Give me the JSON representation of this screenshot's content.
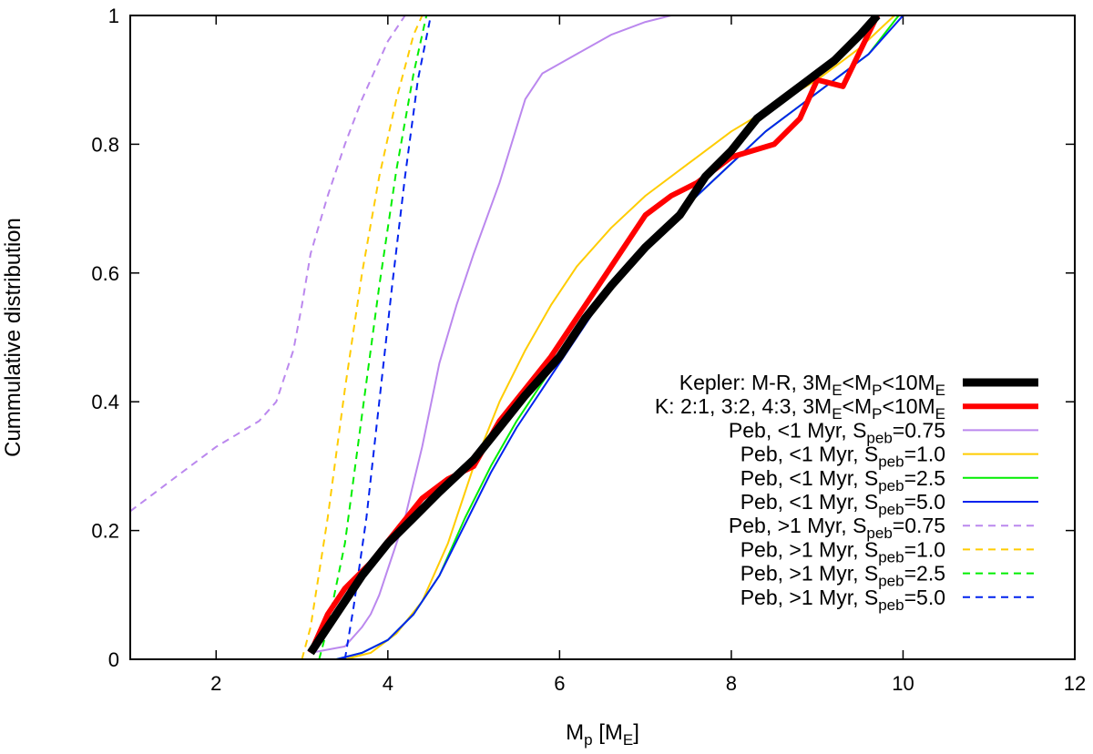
{
  "chart_data": {
    "type": "line",
    "title": "",
    "xlabel": {
      "main": "M",
      "sub": "p",
      "rest": " [M",
      "sub2": "E",
      "end": "]"
    },
    "ylabel": "Cummulative distribution",
    "xlim": [
      1,
      12
    ],
    "ylim": [
      0,
      1
    ],
    "xticks": [
      2,
      4,
      6,
      8,
      10,
      12
    ],
    "yticks": [
      0,
      0.2,
      0.4,
      0.6,
      0.8,
      1
    ],
    "xtick_labels": [
      "2",
      "4",
      "6",
      "8",
      "10",
      "12"
    ],
    "ytick_labels": [
      "0",
      "0.2",
      "0.4",
      "0.6",
      "0.8",
      "1"
    ],
    "legend_position": "bottom-right",
    "series": [
      {
        "name": "Kepler: M-R, 3ME<MP<10ME",
        "label_parts": [
          [
            "Kepler: M-R, 3M",
            ""
          ],
          [
            "E",
            "sub"
          ],
          [
            "<M",
            ""
          ],
          [
            "P",
            "sub"
          ],
          [
            "<10M",
            ""
          ],
          [
            "E",
            "sub"
          ]
        ],
        "color": "#000000",
        "width": 9,
        "dash": "",
        "x": [
          3.1,
          3.3,
          3.5,
          3.7,
          4.0,
          4.3,
          4.6,
          5.0,
          5.3,
          5.6,
          6.0,
          6.3,
          6.6,
          7.0,
          7.4,
          7.7,
          8.0,
          8.3,
          8.6,
          8.9,
          9.2,
          9.5,
          9.7
        ],
        "y": [
          0.01,
          0.05,
          0.09,
          0.13,
          0.18,
          0.22,
          0.26,
          0.31,
          0.36,
          0.41,
          0.47,
          0.53,
          0.58,
          0.64,
          0.69,
          0.75,
          0.79,
          0.84,
          0.87,
          0.9,
          0.93,
          0.97,
          1.0
        ]
      },
      {
        "name": "K: 2:1, 3:2, 4:3, 3ME<MP<10ME",
        "label_parts": [
          [
            "K: 2:1, 3:2, 4:3,  3M",
            ""
          ],
          [
            "E",
            "sub"
          ],
          [
            "<M",
            ""
          ],
          [
            "P",
            "sub"
          ],
          [
            "<10M",
            ""
          ],
          [
            "E",
            "sub"
          ]
        ],
        "color": "#ff0000",
        "width": 6,
        "dash": "",
        "x": [
          3.1,
          3.3,
          3.5,
          3.8,
          4.1,
          4.4,
          4.7,
          5.0,
          5.3,
          5.6,
          5.9,
          6.2,
          6.5,
          6.8,
          7.0,
          7.3,
          7.6,
          8.0,
          8.5,
          8.8,
          9.0,
          9.3,
          9.7
        ],
        "y": [
          0.01,
          0.07,
          0.11,
          0.15,
          0.2,
          0.25,
          0.28,
          0.3,
          0.37,
          0.42,
          0.47,
          0.53,
          0.59,
          0.65,
          0.69,
          0.72,
          0.74,
          0.78,
          0.8,
          0.84,
          0.9,
          0.89,
          1.0
        ]
      },
      {
        "name": "Peb, <1 Myr, Speb=0.75",
        "label_parts": [
          [
            "Peb, <1 Myr, S",
            ""
          ],
          [
            "peb",
            "sub"
          ],
          [
            "=0.75",
            ""
          ]
        ],
        "color": "#bb88ee",
        "width": 2,
        "dash": "",
        "x": [
          3.1,
          3.5,
          3.7,
          3.8,
          3.9,
          4.0,
          4.2,
          4.4,
          4.6,
          4.8,
          5.0,
          5.3,
          5.6,
          5.8,
          6.2,
          6.6,
          7.0,
          7.3
        ],
        "y": [
          0.01,
          0.02,
          0.05,
          0.07,
          0.1,
          0.14,
          0.22,
          0.33,
          0.46,
          0.55,
          0.63,
          0.74,
          0.87,
          0.91,
          0.94,
          0.97,
          0.99,
          1.0
        ]
      },
      {
        "name": "Peb, <1 Myr, Speb=1.0",
        "label_parts": [
          [
            "Peb, <1 Myr, S",
            ""
          ],
          [
            "peb",
            "sub"
          ],
          [
            "=1.0",
            ""
          ]
        ],
        "color": "#ffcc00",
        "width": 2,
        "dash": "",
        "x": [
          3.5,
          3.8,
          4.1,
          4.4,
          4.7,
          5.0,
          5.3,
          5.6,
          5.9,
          6.2,
          6.6,
          7.0,
          7.5,
          8.0,
          8.5,
          9.0,
          9.5,
          9.9
        ],
        "y": [
          0.0,
          0.01,
          0.04,
          0.09,
          0.18,
          0.3,
          0.4,
          0.48,
          0.55,
          0.61,
          0.67,
          0.72,
          0.77,
          0.82,
          0.86,
          0.9,
          0.95,
          1.0
        ]
      },
      {
        "name": "Peb, <1 Myr, Speb=2.5",
        "label_parts": [
          [
            "Peb, <1 Myr, S",
            ""
          ],
          [
            "peb",
            "sub"
          ],
          [
            "=2.5",
            ""
          ]
        ],
        "color": "#00ee00",
        "width": 2,
        "dash": "",
        "x": [
          3.4,
          3.7,
          4.0,
          4.3,
          4.6,
          4.9,
          5.2,
          5.5,
          5.8,
          6.1,
          6.4,
          6.7,
          7.0,
          7.3,
          7.6,
          8.0,
          8.4,
          8.8,
          9.2,
          9.6,
          9.95
        ],
        "y": [
          0.0,
          0.01,
          0.03,
          0.07,
          0.13,
          0.22,
          0.3,
          0.37,
          0.43,
          0.49,
          0.55,
          0.6,
          0.64,
          0.68,
          0.72,
          0.77,
          0.82,
          0.86,
          0.9,
          0.94,
          1.0
        ]
      },
      {
        "name": "Peb, <1 Myr, Speb=5.0",
        "label_parts": [
          [
            "Peb, <1 Myr, S",
            ""
          ],
          [
            "peb",
            "sub"
          ],
          [
            "=5.0",
            ""
          ]
        ],
        "color": "#0022ee",
        "width": 2,
        "dash": "",
        "x": [
          3.4,
          3.7,
          4.0,
          4.3,
          4.6,
          4.9,
          5.2,
          5.5,
          5.8,
          6.1,
          6.4,
          6.7,
          7.0,
          7.3,
          7.6,
          8.0,
          8.4,
          8.8,
          9.2,
          9.6,
          10.0
        ],
        "y": [
          0.0,
          0.01,
          0.03,
          0.07,
          0.13,
          0.21,
          0.29,
          0.36,
          0.42,
          0.48,
          0.54,
          0.59,
          0.64,
          0.68,
          0.72,
          0.77,
          0.82,
          0.86,
          0.9,
          0.94,
          1.0
        ]
      },
      {
        "name": "Peb, >1 Myr, Speb=0.75",
        "label_parts": [
          [
            "Peb, >1 Myr, S",
            ""
          ],
          [
            "peb",
            "sub"
          ],
          [
            "=0.75",
            ""
          ]
        ],
        "color": "#bb88ee",
        "width": 2,
        "dash": "8,6",
        "x": [
          1.0,
          1.5,
          2.0,
          2.5,
          2.7,
          2.9,
          3.0,
          3.1,
          3.3,
          3.5,
          3.7,
          3.9,
          4.0,
          4.2
        ],
        "y": [
          0.23,
          0.28,
          0.33,
          0.37,
          0.4,
          0.48,
          0.55,
          0.63,
          0.72,
          0.8,
          0.87,
          0.93,
          0.96,
          1.0
        ]
      },
      {
        "name": "Peb, >1 Myr, Speb=1.0",
        "label_parts": [
          [
            "Peb, >1 Myr, S",
            ""
          ],
          [
            "peb",
            "sub"
          ],
          [
            "=1.0",
            ""
          ]
        ],
        "color": "#ffcc00",
        "width": 2,
        "dash": "8,6",
        "x": [
          3.0,
          3.1,
          3.3,
          3.5,
          3.7,
          3.9,
          4.1,
          4.3,
          4.4
        ],
        "y": [
          0.0,
          0.05,
          0.22,
          0.42,
          0.6,
          0.75,
          0.87,
          0.97,
          1.0
        ]
      },
      {
        "name": "Peb, >1 Myr, Speb=2.5",
        "label_parts": [
          [
            "Peb, >1 Myr, S",
            ""
          ],
          [
            "peb",
            "sub"
          ],
          [
            "=2.5",
            ""
          ]
        ],
        "color": "#00ee00",
        "width": 2,
        "dash": "8,6",
        "x": [
          3.2,
          3.3,
          3.5,
          3.7,
          3.9,
          4.1,
          4.3,
          4.45
        ],
        "y": [
          0.0,
          0.05,
          0.18,
          0.38,
          0.58,
          0.76,
          0.91,
          1.0
        ]
      },
      {
        "name": "Peb, >1 Myr, Speb=5.0",
        "label_parts": [
          [
            "Peb, >1 Myr, S",
            ""
          ],
          [
            "peb",
            "sub"
          ],
          [
            "=5.0",
            ""
          ]
        ],
        "color": "#0022ee",
        "width": 2,
        "dash": "8,6",
        "x": [
          3.5,
          3.6,
          3.75,
          3.9,
          4.05,
          4.2,
          4.35,
          4.5
        ],
        "y": [
          0.0,
          0.08,
          0.22,
          0.4,
          0.58,
          0.75,
          0.9,
          1.0
        ]
      }
    ]
  }
}
